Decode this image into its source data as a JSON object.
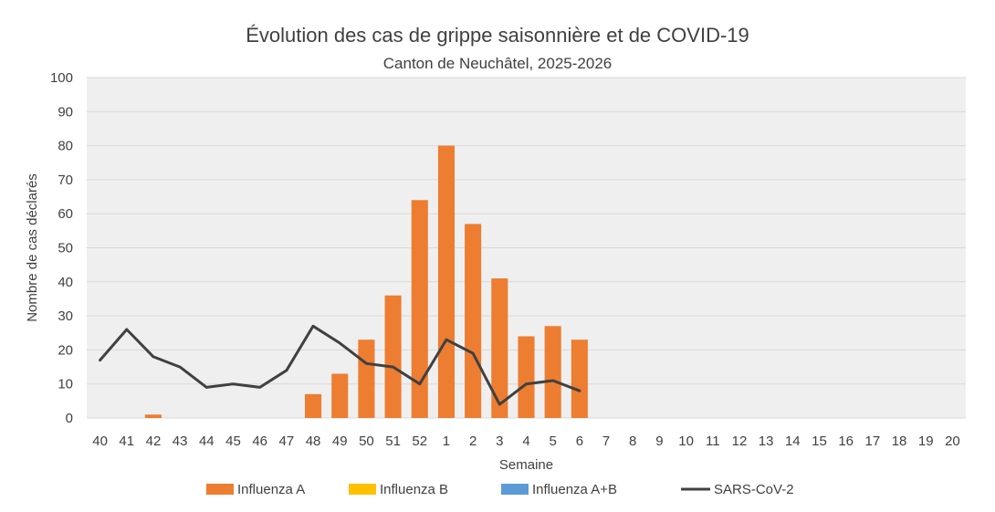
{
  "chart_data": {
    "type": "bar",
    "title": "Évolution des cas de grippe saisonnière et de COVID-19",
    "subtitle": "Canton de Neuchâtel, 2025-2026",
    "xlabel": "Semaine",
    "ylabel": "Nombre de cas déclarés",
    "ylim": [
      0,
      100
    ],
    "yticks": [
      0,
      10,
      20,
      30,
      40,
      50,
      60,
      70,
      80,
      90,
      100
    ],
    "grid": true,
    "legend_position": "bottom",
    "categories": [
      "40",
      "41",
      "42",
      "43",
      "44",
      "45",
      "46",
      "47",
      "48",
      "49",
      "50",
      "51",
      "52",
      "1",
      "2",
      "3",
      "4",
      "5",
      "6",
      "7",
      "8",
      "9",
      "10",
      "11",
      "12",
      "13",
      "14",
      "15",
      "16",
      "17",
      "18",
      "19",
      "20"
    ],
    "series": [
      {
        "name": "Influenza A",
        "kind": "bar",
        "color": "#ED7D31",
        "values": [
          0,
          0,
          1,
          0,
          0,
          0,
          0,
          0,
          7,
          13,
          23,
          36,
          64,
          80,
          57,
          41,
          24,
          27,
          23,
          null,
          null,
          null,
          null,
          null,
          null,
          null,
          null,
          null,
          null,
          null,
          null,
          null,
          null
        ]
      },
      {
        "name": "Influenza B",
        "kind": "bar",
        "color": "#FFC000",
        "values": [
          0,
          0,
          0,
          0,
          0,
          0,
          0,
          0,
          0,
          0,
          0,
          0,
          0,
          0,
          0,
          0,
          0,
          0,
          0,
          null,
          null,
          null,
          null,
          null,
          null,
          null,
          null,
          null,
          null,
          null,
          null,
          null,
          null
        ]
      },
      {
        "name": "Influenza A+B",
        "kind": "bar",
        "color": "#5B9BD5",
        "values": [
          0,
          0,
          0,
          0,
          0,
          0,
          0,
          0,
          0,
          0,
          0,
          0,
          0,
          0,
          0,
          0,
          0,
          0,
          0,
          null,
          null,
          null,
          null,
          null,
          null,
          null,
          null,
          null,
          null,
          null,
          null,
          null,
          null
        ]
      },
      {
        "name": "SARS-CoV-2",
        "kind": "line",
        "color": "#404040",
        "values": [
          17,
          26,
          18,
          15,
          9,
          10,
          9,
          14,
          27,
          22,
          16,
          15,
          10,
          23,
          19,
          4,
          10,
          11,
          8,
          null,
          null,
          null,
          null,
          null,
          null,
          null,
          null,
          null,
          null,
          null,
          null,
          null,
          null
        ]
      }
    ]
  }
}
